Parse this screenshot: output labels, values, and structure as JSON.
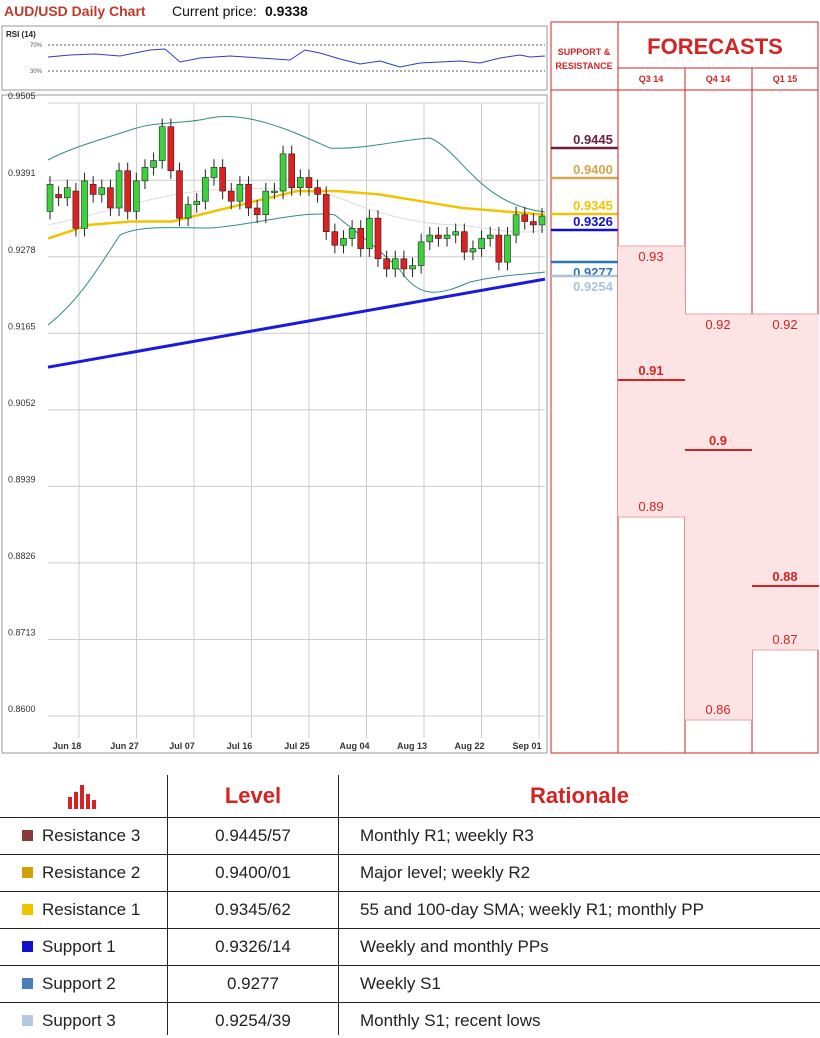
{
  "header": {
    "title": "AUD/USD Daily Chart",
    "price_label": "Current price:",
    "price_value": "0.9338"
  },
  "rsi": {
    "label": "RSI (14)",
    "upper_label": "70%",
    "lower_label": "30%"
  },
  "chart_data": [
    {
      "type": "candlestick",
      "title": "AUD/USD Daily Chart",
      "y_ticks": [
        "0.9505",
        "0.9391",
        "0.9278",
        "0.9165",
        "0.9052",
        "0.8939",
        "0.8826",
        "0.8713",
        "0.8600"
      ],
      "ylim": [
        0.86,
        0.9505
      ],
      "x_ticks": [
        "Jun 18",
        "Jun 27",
        "Jul 07",
        "Jul 16",
        "Jul 25",
        "Aug 04",
        "Aug 13",
        "Aug 22",
        "Sep 01"
      ],
      "candles": [
        [
          0.9345,
          0.9385
        ],
        [
          0.937,
          0.9365
        ],
        [
          0.9365,
          0.938
        ],
        [
          0.9375,
          0.932
        ],
        [
          0.932,
          0.939
        ],
        [
          0.9385,
          0.937
        ],
        [
          0.937,
          0.938
        ],
        [
          0.938,
          0.935
        ],
        [
          0.935,
          0.9405
        ],
        [
          0.9405,
          0.9345
        ],
        [
          0.9345,
          0.939
        ],
        [
          0.939,
          0.941
        ],
        [
          0.941,
          0.942
        ],
        [
          0.942,
          0.947
        ],
        [
          0.947,
          0.9405
        ],
        [
          0.9405,
          0.9335
        ],
        [
          0.9335,
          0.9355
        ],
        [
          0.9355,
          0.936
        ],
        [
          0.936,
          0.9395
        ],
        [
          0.9395,
          0.941
        ],
        [
          0.941,
          0.9375
        ],
        [
          0.9375,
          0.936
        ],
        [
          0.936,
          0.9385
        ],
        [
          0.9385,
          0.935
        ],
        [
          0.935,
          0.934
        ],
        [
          0.934,
          0.9375
        ],
        [
          0.9375,
          0.9375
        ],
        [
          0.9375,
          0.943
        ],
        [
          0.943,
          0.938
        ],
        [
          0.938,
          0.9395
        ],
        [
          0.9395,
          0.938
        ],
        [
          0.938,
          0.937
        ],
        [
          0.937,
          0.9315
        ],
        [
          0.9315,
          0.9295
        ],
        [
          0.9295,
          0.9305
        ],
        [
          0.9305,
          0.932
        ],
        [
          0.932,
          0.929
        ],
        [
          0.929,
          0.9335
        ],
        [
          0.9335,
          0.9275
        ],
        [
          0.9275,
          0.926
        ],
        [
          0.926,
          0.9275
        ],
        [
          0.9275,
          0.926
        ],
        [
          0.926,
          0.9265
        ],
        [
          0.9265,
          0.93
        ],
        [
          0.93,
          0.931
        ],
        [
          0.931,
          0.9305
        ],
        [
          0.9305,
          0.931
        ],
        [
          0.931,
          0.9315
        ],
        [
          0.9315,
          0.9285
        ],
        [
          0.9285,
          0.929
        ],
        [
          0.929,
          0.9305
        ],
        [
          0.9305,
          0.931
        ],
        [
          0.931,
          0.927
        ],
        [
          0.927,
          0.931
        ],
        [
          0.931,
          0.934
        ],
        [
          0.934,
          0.933
        ],
        [
          0.933,
          0.9325
        ],
        [
          0.9325,
          0.9338
        ]
      ],
      "sma_55": [
        0.9305,
        0.9325,
        0.933,
        0.933,
        0.9345,
        0.936,
        0.9375,
        0.9375,
        0.937,
        0.936,
        0.935,
        0.9345,
        0.934
      ],
      "sma_200_start_end": [
        0.9115,
        0.9245
      ],
      "levels": [
        {
          "name": "Resistance 3",
          "value": "0.9445",
          "color": "#6b1f3a"
        },
        {
          "name": "Resistance 2",
          "value": "0.9400",
          "color": "#d2a64a"
        },
        {
          "name": "Resistance 1",
          "value": "0.9345",
          "color": "#f2c400"
        },
        {
          "name": "Support 1",
          "value": "0.9326",
          "color": "#1010d0"
        },
        {
          "name": "Support 2",
          "value": "0.9277",
          "color": "#2e75b6"
        },
        {
          "name": "Support 3",
          "value": "0.9254",
          "color": "#a9c4dc"
        }
      ]
    },
    {
      "type": "forecast-ranges",
      "title": "FORECASTS",
      "columns": [
        {
          "label": "Q3 14",
          "high": "0.93",
          "mid": "0.91",
          "low": "0.89"
        },
        {
          "label": "Q4 14",
          "high": "0.92",
          "mid": "0.9",
          "low": "0.86"
        },
        {
          "label": "Q1 15",
          "high": "0.92",
          "mid": "0.88",
          "low": "0.87"
        }
      ]
    }
  ],
  "sr_panel": {
    "title_line1": "SUPPORT &",
    "title_line2": "RESISTANCE"
  },
  "table": {
    "headers": {
      "level": "Level",
      "rationale": "Rationale"
    },
    "rows": [
      {
        "name": "Resistance 3",
        "level": "0.9445/57",
        "rationale": "Monthly R1; weekly R3",
        "color": "#8b3a3a"
      },
      {
        "name": "Resistance 2",
        "level": "0.9400/01",
        "rationale": "Major level; weekly R2",
        "color": "#d2a000"
      },
      {
        "name": "Resistance 1",
        "level": "0.9345/62",
        "rationale": "55 and 100-day SMA; weekly R1; monthly PP",
        "color": "#f2c400"
      },
      {
        "name": "Support 1",
        "level": "0.9326/14",
        "rationale": "Weekly and monthly PPs",
        "color": "#1010d0"
      },
      {
        "name": "Support 2",
        "level": "0.9277",
        "rationale": "Weekly S1",
        "color": "#4a7ebb"
      },
      {
        "name": "Support 3",
        "level": "0.9254/39",
        "rationale": "Monthly S1; recent lows",
        "color": "#b4c8e4"
      }
    ]
  }
}
